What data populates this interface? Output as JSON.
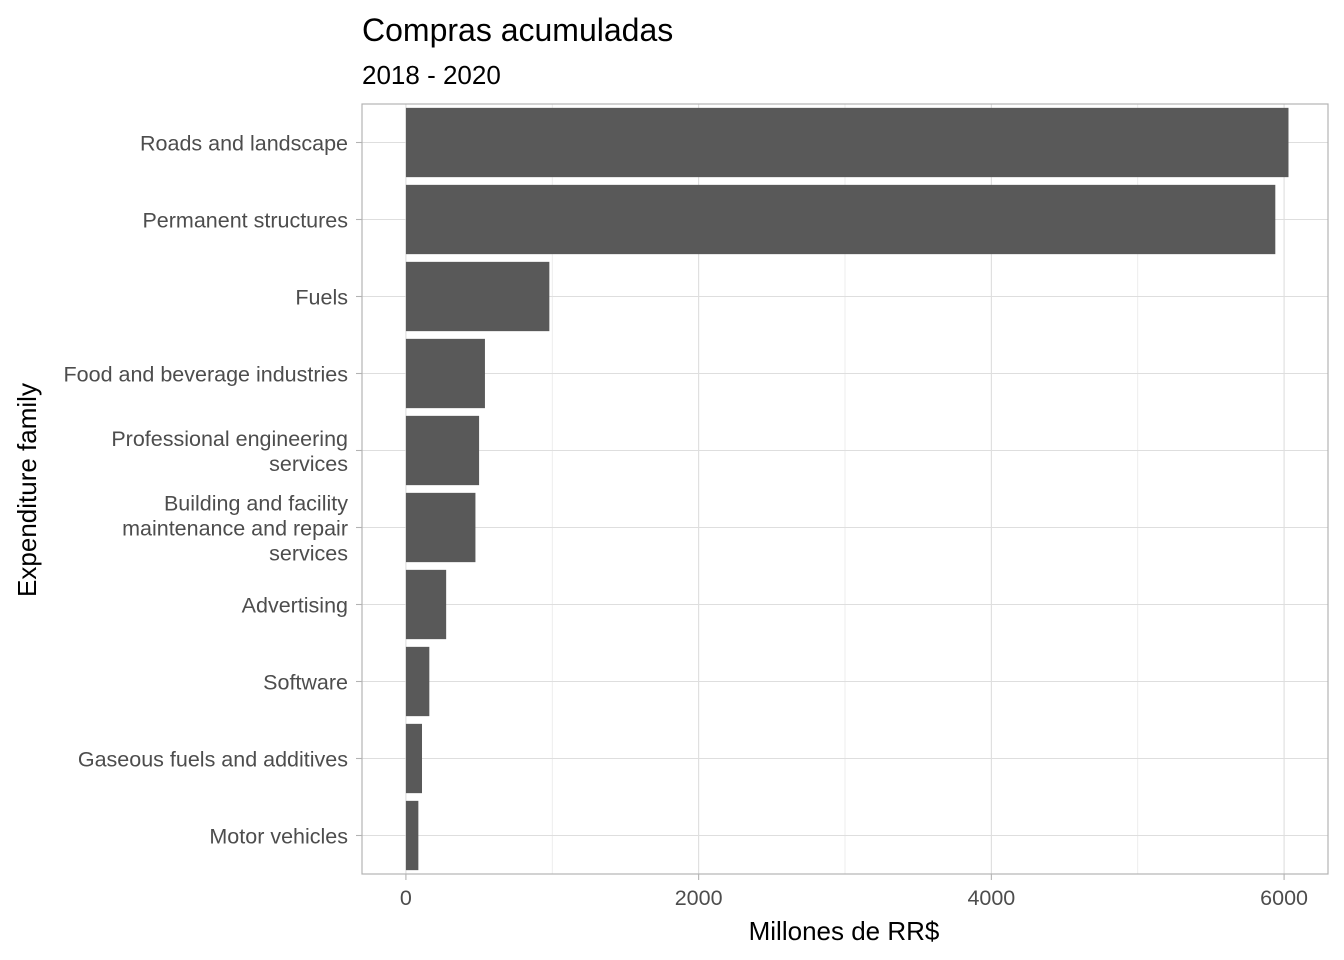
{
  "chart_data": {
    "type": "bar",
    "orientation": "horizontal",
    "title": "Compras acumuladas",
    "subtitle": "2018 - 2020",
    "xlabel": "Millones de RR$",
    "ylabel": "Expenditure family",
    "categories": [
      "Roads and landscape",
      "Permanent structures",
      "Fuels",
      "Food and beverage industries",
      "Professional engineering services",
      "Building and facility maintenance and repair services",
      "Advertising",
      "Software",
      "Gaseous fuels and additives",
      "Motor vehicles"
    ],
    "category_lines": [
      [
        "Roads and landscape"
      ],
      [
        "Permanent structures"
      ],
      [
        "Fuels"
      ],
      [
        "Food and beverage industries"
      ],
      [
        "Professional engineering",
        "services"
      ],
      [
        "Building and facility",
        "maintenance and repair",
        "services"
      ],
      [
        "Advertising"
      ],
      [
        "Software"
      ],
      [
        "Gaseous fuels and additives"
      ],
      [
        "Motor vehicles"
      ]
    ],
    "values": [
      6030,
      5940,
      980,
      540,
      500,
      475,
      275,
      160,
      110,
      85
    ],
    "xlim": [
      -300,
      6300
    ],
    "xticks": [
      0,
      2000,
      4000,
      6000
    ],
    "xtick_labels": [
      "0",
      "2000",
      "4000",
      "6000"
    ],
    "bar_color": "#595959",
    "grid": true,
    "theme": "light"
  }
}
